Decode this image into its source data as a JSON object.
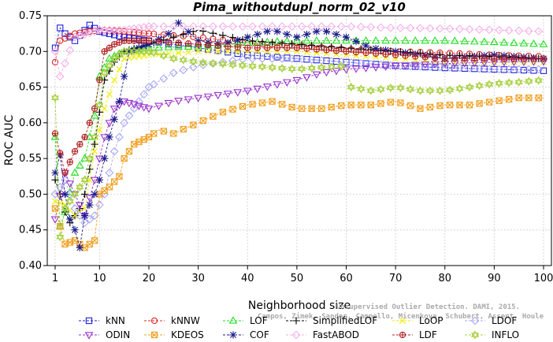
{
  "chart_data": {
    "type": "line",
    "title": "Pima_withoutdupl_norm_02_v10",
    "xlabel": "Neighborhood size",
    "ylabel": "ROC AUC",
    "xlim": [
      0,
      100
    ],
    "ylim": [
      0.4,
      0.75
    ],
    "x_ticks": [
      "1",
      "10",
      "20",
      "30",
      "40",
      "50",
      "60",
      "70",
      "80",
      "90",
      "100"
    ],
    "y_ticks": [
      "0.40",
      "0.45",
      "0.50",
      "0.55",
      "0.60",
      "0.65",
      "0.70",
      "0.75"
    ],
    "grid": true,
    "legend_position": "bottom",
    "watermark": [
      "Unsupervised Outlier Detection. DAMI, 2015.",
      "Campos, Zimek, Sander, Campello, Micenkova, Schubert, Assent, Houle"
    ],
    "series": [
      {
        "name": "kNN",
        "color": "#1f1fdc",
        "marker": "square",
        "points": [
          [
            1,
            0.705
          ],
          [
            2,
            0.733
          ],
          [
            3,
            0.725
          ],
          [
            5,
            0.715
          ],
          [
            8,
            0.737
          ],
          [
            10,
            0.728
          ],
          [
            15,
            0.72
          ],
          [
            20,
            0.715
          ],
          [
            30,
            0.705
          ],
          [
            40,
            0.695
          ],
          [
            50,
            0.69
          ],
          [
            60,
            0.685
          ],
          [
            70,
            0.68
          ],
          [
            80,
            0.677
          ],
          [
            90,
            0.675
          ],
          [
            100,
            0.673
          ]
        ]
      },
      {
        "name": "kNNW",
        "color": "#dd2a2a",
        "marker": "circle",
        "points": [
          [
            1,
            0.685
          ],
          [
            2,
            0.715
          ],
          [
            5,
            0.725
          ],
          [
            10,
            0.73
          ],
          [
            15,
            0.728
          ],
          [
            20,
            0.725
          ],
          [
            30,
            0.72
          ],
          [
            40,
            0.712
          ],
          [
            50,
            0.708
          ],
          [
            60,
            0.703
          ],
          [
            70,
            0.7
          ],
          [
            80,
            0.698
          ],
          [
            90,
            0.695
          ],
          [
            100,
            0.693
          ]
        ]
      },
      {
        "name": "LOF",
        "color": "#22dd22",
        "marker": "triangle-up",
        "points": [
          [
            1,
            0.58
          ],
          [
            2,
            0.455
          ],
          [
            3,
            0.475
          ],
          [
            5,
            0.53
          ],
          [
            7,
            0.55
          ],
          [
            9,
            0.61
          ],
          [
            10,
            0.665
          ],
          [
            12,
            0.69
          ],
          [
            15,
            0.7
          ],
          [
            20,
            0.705
          ],
          [
            30,
            0.707
          ],
          [
            40,
            0.712
          ],
          [
            50,
            0.715
          ],
          [
            60,
            0.715
          ],
          [
            70,
            0.715
          ],
          [
            80,
            0.715
          ],
          [
            90,
            0.713
          ],
          [
            100,
            0.71
          ]
        ]
      },
      {
        "name": "SimplifiedLOF",
        "color": "#000000",
        "marker": "plus",
        "points": [
          [
            1,
            0.52
          ],
          [
            2,
            0.5
          ],
          [
            3,
            0.475
          ],
          [
            4,
            0.46
          ],
          [
            5,
            0.47
          ],
          [
            6,
            0.48
          ],
          [
            7,
            0.5
          ],
          [
            8,
            0.535
          ],
          [
            9,
            0.57
          ],
          [
            11,
            0.66
          ],
          [
            13,
            0.685
          ],
          [
            15,
            0.7
          ],
          [
            20,
            0.71
          ],
          [
            30,
            0.73
          ],
          [
            40,
            0.715
          ],
          [
            50,
            0.71
          ],
          [
            60,
            0.705
          ],
          [
            70,
            0.7
          ],
          [
            80,
            0.695
          ],
          [
            90,
            0.693
          ],
          [
            100,
            0.69
          ]
        ]
      },
      {
        "name": "LoOP",
        "color": "#eeee00",
        "marker": "cross",
        "points": [
          [
            1,
            0.49
          ],
          [
            3,
            0.485
          ],
          [
            5,
            0.47
          ],
          [
            7,
            0.48
          ],
          [
            9,
            0.56
          ],
          [
            11,
            0.62
          ],
          [
            13,
            0.66
          ],
          [
            15,
            0.69
          ],
          [
            20,
            0.695
          ],
          [
            30,
            0.7
          ],
          [
            40,
            0.7
          ],
          [
            50,
            0.7
          ],
          [
            60,
            0.695
          ],
          [
            70,
            0.69
          ],
          [
            80,
            0.685
          ],
          [
            90,
            0.685
          ],
          [
            100,
            0.685
          ]
        ]
      },
      {
        "name": "LDOF",
        "color": "#a8a8f0",
        "marker": "diamond",
        "points": [
          [
            1,
            0.5
          ],
          [
            3,
            0.52
          ],
          [
            5,
            0.48
          ],
          [
            7,
            0.46
          ],
          [
            9,
            0.47
          ],
          [
            11,
            0.5
          ],
          [
            13,
            0.56
          ],
          [
            15,
            0.6
          ],
          [
            20,
            0.65
          ],
          [
            25,
            0.67
          ],
          [
            30,
            0.68
          ],
          [
            40,
            0.69
          ],
          [
            50,
            0.69
          ],
          [
            60,
            0.685
          ],
          [
            70,
            0.68
          ],
          [
            80,
            0.678
          ],
          [
            90,
            0.675
          ],
          [
            100,
            0.675
          ]
        ]
      },
      {
        "name": "ODIN",
        "color": "#9933cc",
        "marker": "triangle-down",
        "points": [
          [
            1,
            0.465
          ],
          [
            3,
            0.53
          ],
          [
            5,
            0.5
          ],
          [
            7,
            0.47
          ],
          [
            9,
            0.52
          ],
          [
            11,
            0.58
          ],
          [
            13,
            0.62
          ],
          [
            15,
            0.63
          ],
          [
            20,
            0.62
          ],
          [
            25,
            0.63
          ],
          [
            30,
            0.635
          ],
          [
            40,
            0.645
          ],
          [
            50,
            0.66
          ],
          [
            55,
            0.67
          ],
          [
            60,
            0.675
          ],
          [
            70,
            0.68
          ],
          [
            80,
            0.683
          ],
          [
            90,
            0.685
          ],
          [
            100,
            0.686
          ]
        ]
      },
      {
        "name": "KDEOS",
        "color": "#f0a020",
        "marker": "square-x",
        "points": [
          [
            1,
            0.48
          ],
          [
            3,
            0.43
          ],
          [
            5,
            0.435
          ],
          [
            7,
            0.425
          ],
          [
            9,
            0.435
          ],
          [
            10,
            0.5
          ],
          [
            12,
            0.51
          ],
          [
            14,
            0.525
          ],
          [
            15,
            0.55
          ],
          [
            17,
            0.57
          ],
          [
            20,
            0.58
          ],
          [
            22,
            0.59
          ],
          [
            25,
            0.585
          ],
          [
            30,
            0.6
          ],
          [
            35,
            0.615
          ],
          [
            40,
            0.625
          ],
          [
            45,
            0.63
          ],
          [
            50,
            0.62
          ],
          [
            55,
            0.62
          ],
          [
            60,
            0.625
          ],
          [
            65,
            0.625
          ],
          [
            70,
            0.63
          ],
          [
            75,
            0.62
          ],
          [
            80,
            0.625
          ],
          [
            85,
            0.625
          ],
          [
            90,
            0.63
          ],
          [
            95,
            0.635
          ],
          [
            100,
            0.635
          ]
        ]
      },
      {
        "name": "COF",
        "color": "#1a1a8c",
        "marker": "star",
        "points": [
          [
            1,
            0.53
          ],
          [
            2,
            0.555
          ],
          [
            3,
            0.5
          ],
          [
            4,
            0.465
          ],
          [
            5,
            0.45
          ],
          [
            6,
            0.425
          ],
          [
            7,
            0.47
          ],
          [
            9,
            0.5
          ],
          [
            10,
            0.52
          ],
          [
            12,
            0.58
          ],
          [
            14,
            0.63
          ],
          [
            16,
            0.7
          ],
          [
            20,
            0.71
          ],
          [
            24,
            0.725
          ],
          [
            26,
            0.74
          ],
          [
            30,
            0.715
          ],
          [
            35,
            0.71
          ],
          [
            40,
            0.72
          ],
          [
            45,
            0.73
          ],
          [
            50,
            0.72
          ],
          [
            55,
            0.73
          ],
          [
            60,
            0.72
          ],
          [
            65,
            0.705
          ],
          [
            70,
            0.7
          ],
          [
            75,
            0.695
          ],
          [
            80,
            0.69
          ],
          [
            90,
            0.695
          ],
          [
            100,
            0.69
          ]
        ]
      },
      {
        "name": "FastABOD",
        "color": "#f4b0e8",
        "marker": "diamond",
        "points": [
          [
            1,
            0.7
          ],
          [
            2,
            0.665
          ],
          [
            5,
            0.72
          ],
          [
            10,
            0.73
          ],
          [
            15,
            0.73
          ],
          [
            20,
            0.735
          ],
          [
            30,
            0.735
          ],
          [
            40,
            0.735
          ],
          [
            50,
            0.735
          ],
          [
            60,
            0.735
          ],
          [
            70,
            0.733
          ],
          [
            80,
            0.732
          ],
          [
            90,
            0.73
          ],
          [
            100,
            0.728
          ]
        ]
      },
      {
        "name": "LDF",
        "color": "#b02020",
        "marker": "circle-cross",
        "points": [
          [
            1,
            0.585
          ],
          [
            3,
            0.53
          ],
          [
            5,
            0.56
          ],
          [
            7,
            0.58
          ],
          [
            9,
            0.62
          ],
          [
            11,
            0.7
          ],
          [
            13,
            0.71
          ],
          [
            15,
            0.715
          ],
          [
            20,
            0.715
          ],
          [
            30,
            0.71
          ],
          [
            40,
            0.705
          ],
          [
            50,
            0.705
          ],
          [
            60,
            0.7
          ],
          [
            70,
            0.695
          ],
          [
            80,
            0.69
          ],
          [
            90,
            0.69
          ],
          [
            100,
            0.69
          ]
        ]
      },
      {
        "name": "INFLO",
        "color": "#a8d040",
        "marker": "star6",
        "points": [
          [
            1,
            0.635
          ],
          [
            2,
            0.44
          ],
          [
            3,
            0.48
          ],
          [
            5,
            0.5
          ],
          [
            7,
            0.52
          ],
          [
            9,
            0.58
          ],
          [
            11,
            0.67
          ],
          [
            13,
            0.69
          ],
          [
            15,
            0.7
          ],
          [
            20,
            0.7
          ],
          [
            25,
            0.69
          ],
          [
            30,
            0.685
          ],
          [
            40,
            0.68
          ],
          [
            50,
            0.675
          ],
          [
            60,
            0.68
          ],
          [
            61,
            0.65
          ],
          [
            65,
            0.645
          ],
          [
            70,
            0.65
          ],
          [
            75,
            0.645
          ],
          [
            80,
            0.645
          ],
          [
            85,
            0.65
          ],
          [
            90,
            0.655
          ],
          [
            95,
            0.657
          ],
          [
            100,
            0.66
          ]
        ]
      }
    ]
  }
}
